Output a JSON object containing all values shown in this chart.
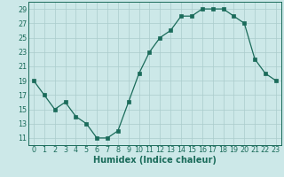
{
  "x": [
    0,
    1,
    2,
    3,
    4,
    5,
    6,
    7,
    8,
    9,
    10,
    11,
    12,
    13,
    14,
    15,
    16,
    17,
    18,
    19,
    20,
    21,
    22,
    23
  ],
  "y": [
    19,
    17,
    15,
    16,
    14,
    13,
    11,
    11,
    12,
    16,
    20,
    23,
    25,
    26,
    28,
    28,
    29,
    29,
    29,
    28,
    27,
    22,
    20,
    19
  ],
  "line_color": "#1a6b5a",
  "marker_color": "#1a6b5a",
  "bg_color": "#cce8e8",
  "grid_color": "#aacccc",
  "xlabel": "Humidex (Indice chaleur)",
  "ylim": [
    10,
    30
  ],
  "xlim": [
    -0.5,
    23.5
  ],
  "yticks": [
    11,
    13,
    15,
    17,
    19,
    21,
    23,
    25,
    27,
    29
  ],
  "xticks": [
    0,
    1,
    2,
    3,
    4,
    5,
    6,
    7,
    8,
    9,
    10,
    11,
    12,
    13,
    14,
    15,
    16,
    17,
    18,
    19,
    20,
    21,
    22,
    23
  ],
  "tick_label_fontsize": 5.8,
  "xlabel_fontsize": 7.0,
  "marker_size": 2.2,
  "line_width": 0.9
}
